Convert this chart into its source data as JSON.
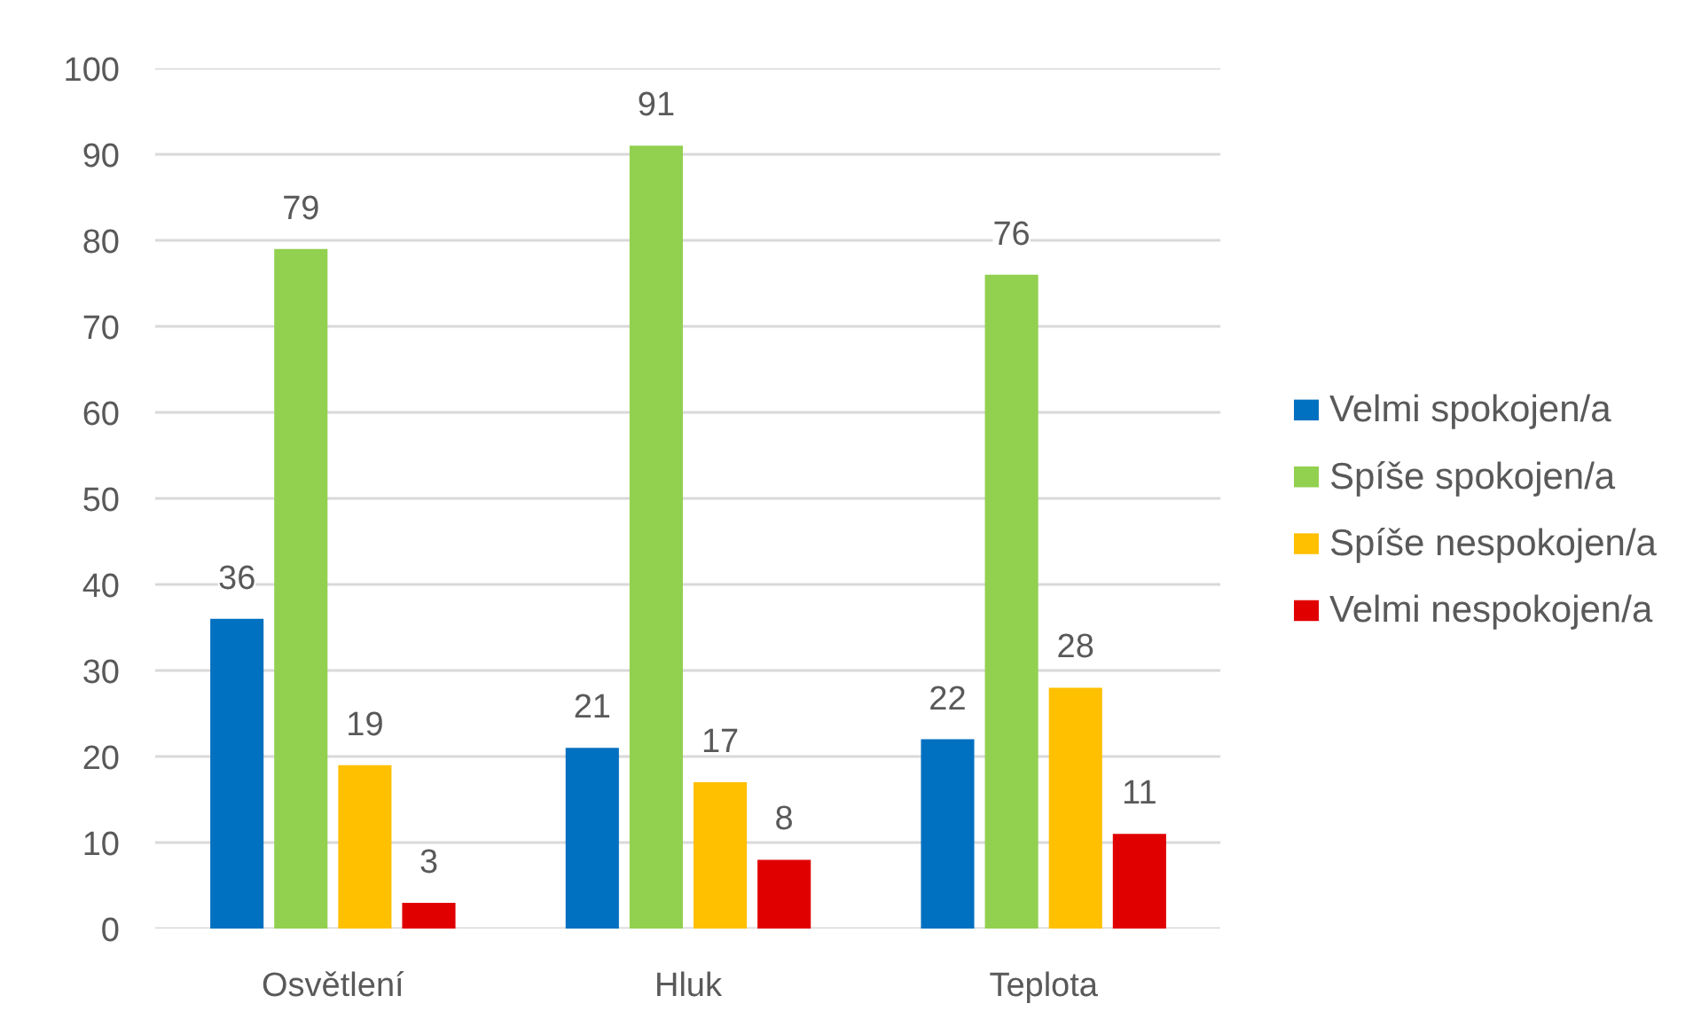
{
  "chart_data": {
    "type": "bar",
    "categories": [
      "Osvětlení",
      "Hluk",
      "Teplota"
    ],
    "series": [
      {
        "name": "Velmi spokojen/a",
        "color": "#0070c0",
        "values": [
          36,
          21,
          22
        ]
      },
      {
        "name": "Spíše spokojen/a",
        "color": "#92d050",
        "values": [
          79,
          91,
          76
        ]
      },
      {
        "name": "Spíše nespokojen/a",
        "color": "#ffc000",
        "values": [
          19,
          17,
          28
        ]
      },
      {
        "name": "Velmi nespokojen/a",
        "color": "#e00000",
        "values": [
          3,
          8,
          11
        ]
      }
    ],
    "ylim": [
      0,
      100
    ],
    "yticks": [
      0,
      10,
      20,
      30,
      40,
      50,
      60,
      70,
      80,
      90,
      100
    ],
    "grid": "y",
    "legend": "right",
    "data_labels": true
  }
}
